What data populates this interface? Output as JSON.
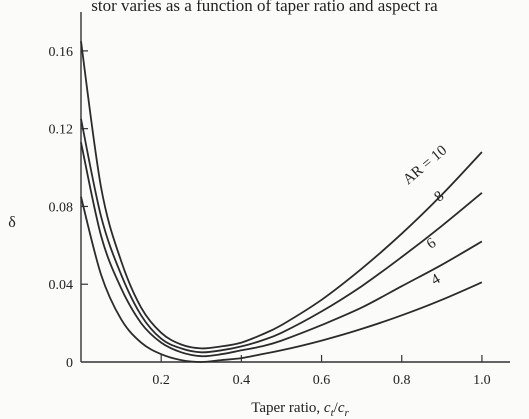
{
  "header_text": "stor varies as a function of taper ratio and aspect ra",
  "chart_data": {
    "type": "line",
    "xlabel_prefix": "Taper ratio, ",
    "xlabel_math": "c_t/c_r",
    "ylabel": "δ",
    "xlim": [
      0.0,
      1.07
    ],
    "ylim": [
      0.0,
      0.18
    ],
    "x_ticks": [
      0.2,
      0.4,
      0.6,
      0.8,
      1.0
    ],
    "x_tick_labels": [
      "0.2",
      "0.4",
      "0.6",
      "0.8",
      "1.0"
    ],
    "y_ticks": [
      0.0,
      0.04,
      0.08,
      0.12,
      0.16
    ],
    "y_tick_labels": [
      "0",
      "0.04",
      "0.08",
      "0.12",
      "0.16"
    ],
    "grid": false,
    "legend": "labels on curves",
    "series": [
      {
        "name": "AR = 10",
        "x": [
          0.0,
          0.05,
          0.1,
          0.15,
          0.2,
          0.25,
          0.3,
          0.35,
          0.4,
          0.45,
          0.5,
          0.6,
          0.7,
          0.8,
          0.9,
          1.0
        ],
        "y": [
          0.165,
          0.09,
          0.052,
          0.028,
          0.015,
          0.009,
          0.007,
          0.008,
          0.01,
          0.014,
          0.019,
          0.032,
          0.048,
          0.066,
          0.086,
          0.108
        ]
      },
      {
        "name": "8",
        "x": [
          0.0,
          0.05,
          0.1,
          0.15,
          0.2,
          0.25,
          0.3,
          0.35,
          0.4,
          0.45,
          0.5,
          0.6,
          0.7,
          0.8,
          0.9,
          1.0
        ],
        "y": [
          0.125,
          0.075,
          0.045,
          0.024,
          0.012,
          0.007,
          0.005,
          0.006,
          0.008,
          0.011,
          0.015,
          0.026,
          0.039,
          0.054,
          0.07,
          0.087
        ]
      },
      {
        "name": "6",
        "x": [
          0.0,
          0.05,
          0.1,
          0.15,
          0.2,
          0.25,
          0.3,
          0.35,
          0.4,
          0.45,
          0.5,
          0.6,
          0.7,
          0.8,
          0.9,
          1.0
        ],
        "y": [
          0.113,
          0.065,
          0.038,
          0.02,
          0.01,
          0.005,
          0.003,
          0.004,
          0.006,
          0.008,
          0.011,
          0.019,
          0.028,
          0.039,
          0.05,
          0.062
        ]
      },
      {
        "name": "4",
        "x": [
          0.0,
          0.05,
          0.1,
          0.15,
          0.2,
          0.25,
          0.3,
          0.35,
          0.4,
          0.45,
          0.5,
          0.6,
          0.7,
          0.8,
          0.9,
          1.0
        ],
        "y": [
          0.085,
          0.045,
          0.022,
          0.01,
          0.004,
          0.001,
          0.0,
          0.001,
          0.002,
          0.004,
          0.006,
          0.011,
          0.017,
          0.024,
          0.032,
          0.041
        ]
      }
    ]
  }
}
